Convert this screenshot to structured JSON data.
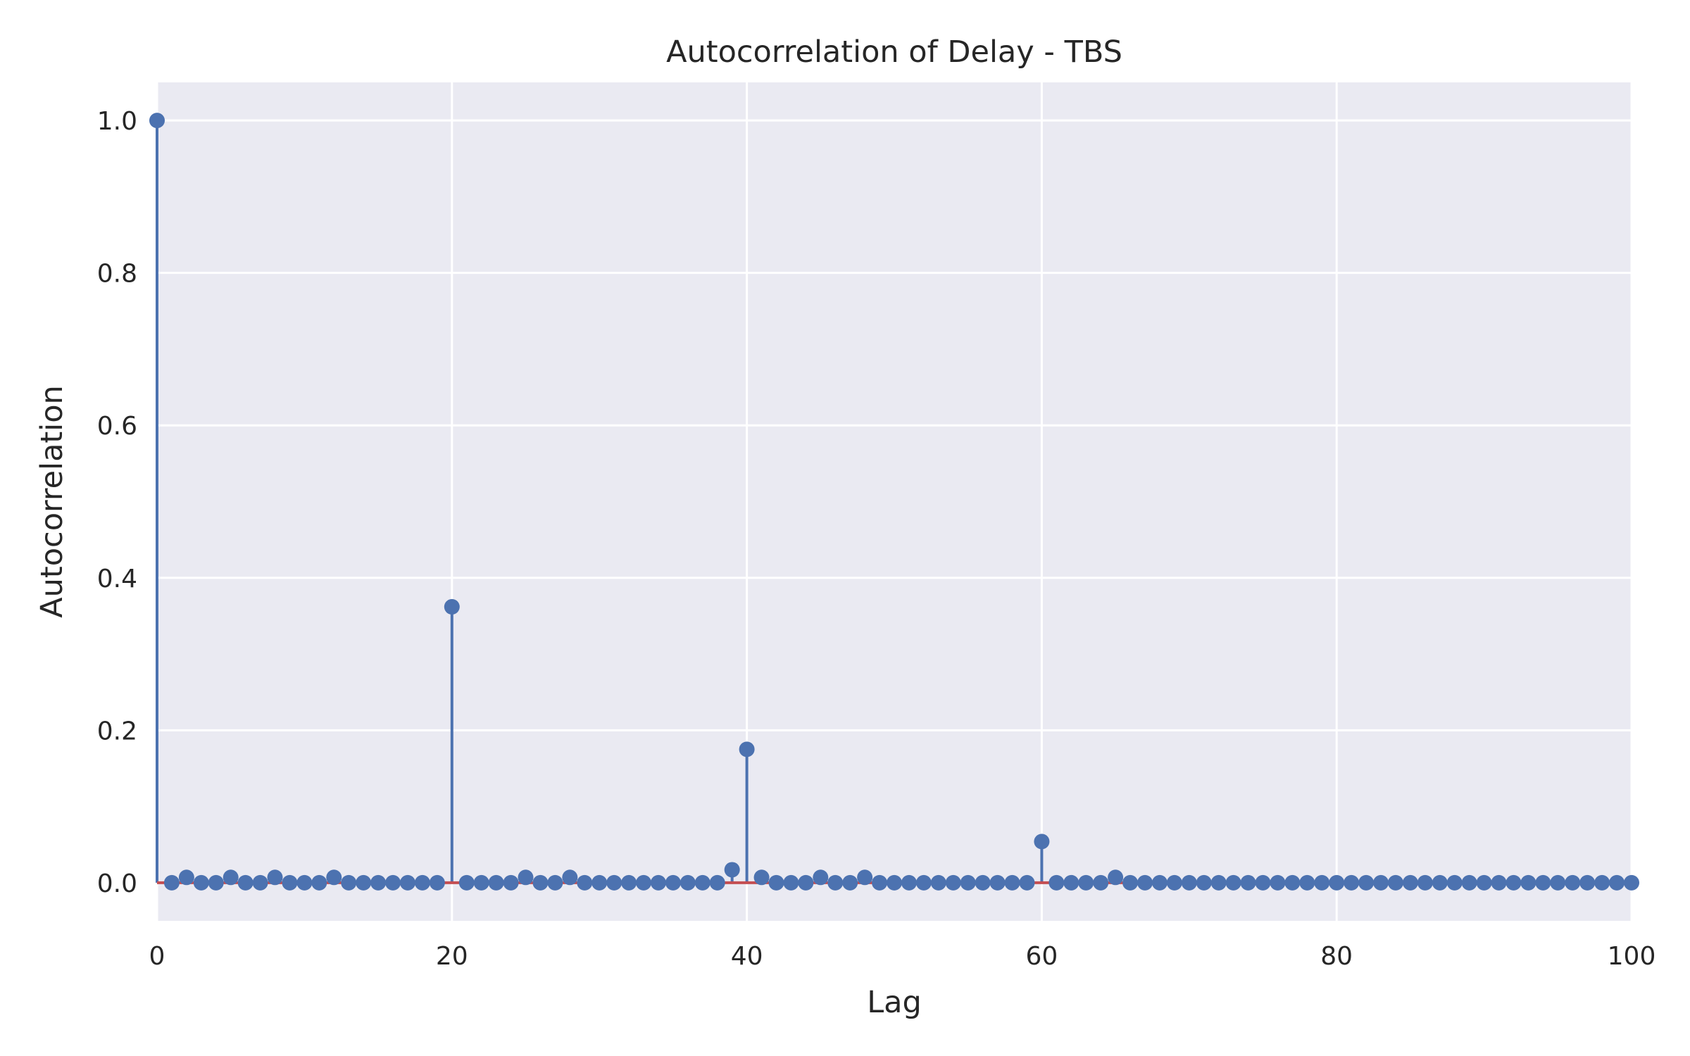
{
  "chart_data": {
    "type": "stem",
    "title": "Autocorrelation of Delay - TBS",
    "xlabel": "Lag",
    "ylabel": "Autocorrelation",
    "xlim": [
      0,
      100
    ],
    "ylim": [
      -0.05,
      1.05
    ],
    "xticks": [
      "0",
      "20",
      "40",
      "60",
      "80",
      "100"
    ],
    "yticks": [
      "0.0",
      "0.2",
      "0.4",
      "0.6",
      "0.8",
      "1.0"
    ],
    "grid": true,
    "colors": {
      "stem": "#4c72b0",
      "baseline": "#c44e52",
      "background": "#eaeaf2",
      "grid": "#ffffff"
    },
    "series": [
      {
        "x": [
          0,
          1,
          2,
          3,
          4,
          5,
          6,
          7,
          8,
          9,
          10,
          11,
          12,
          13,
          14,
          15,
          16,
          17,
          18,
          19,
          20,
          21,
          22,
          23,
          24,
          25,
          26,
          27,
          28,
          29,
          30,
          31,
          32,
          33,
          34,
          35,
          36,
          37,
          38,
          39,
          40,
          41,
          42,
          43,
          44,
          45,
          46,
          47,
          48,
          49,
          50,
          51,
          52,
          53,
          54,
          55,
          56,
          57,
          58,
          59,
          60,
          61,
          62,
          63,
          64,
          65,
          66,
          67,
          68,
          69,
          70,
          71,
          72,
          73,
          74,
          75,
          76,
          77,
          78,
          79,
          80,
          81,
          82,
          83,
          84,
          85,
          86,
          87,
          88,
          89,
          90,
          91,
          92,
          93,
          94,
          95,
          96,
          97,
          98,
          99,
          100
        ],
        "y": [
          1.0,
          0.0,
          0.007,
          0.0,
          0.0,
          0.007,
          0.0,
          0.0,
          0.007,
          0.0,
          0.0,
          0.0,
          0.007,
          0.0,
          0.0,
          0.0,
          0.0,
          0.0,
          0.0,
          0.0,
          0.362,
          0.0,
          0.0,
          0.0,
          0.0,
          0.007,
          0.0,
          0.0,
          0.007,
          0.0,
          0.0,
          0.0,
          0.0,
          0.0,
          0.0,
          0.0,
          0.0,
          0.0,
          0.0,
          0.017,
          0.175,
          0.007,
          0.0,
          0.0,
          0.0,
          0.007,
          0.0,
          0.0,
          0.007,
          0.0,
          0.0,
          0.0,
          0.0,
          0.0,
          0.0,
          0.0,
          0.0,
          0.0,
          0.0,
          0.0,
          0.054,
          0.0,
          0.0,
          0.0,
          0.0,
          0.007,
          0.0,
          0.0,
          0.0,
          0.0,
          0.0,
          0.0,
          0.0,
          0.0,
          0.0,
          0.0,
          0.0,
          0.0,
          0.0,
          0.0,
          0.0,
          0.0,
          0.0,
          0.0,
          0.0,
          0.0,
          0.0,
          0.0,
          0.0,
          0.0,
          0.0,
          0.0,
          0.0,
          0.0,
          0.0,
          0.0,
          0.0,
          0.0,
          0.0,
          0.0,
          0.0
        ]
      }
    ]
  }
}
